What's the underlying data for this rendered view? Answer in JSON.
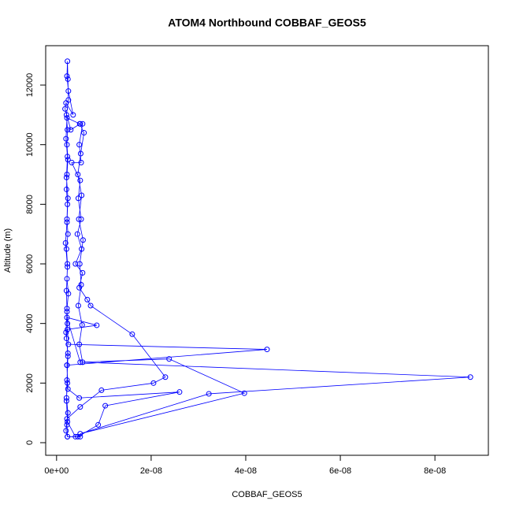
{
  "chart_data": {
    "type": "line",
    "title": "ATOM4 Northbound COBBAF_GEOS5",
    "x_label": "COBBAF_GEOS5",
    "y_label": "Altitude (m)",
    "xlim": [
      -2.3e-09,
      9.13e-08
    ],
    "ylim": [
      -423,
      13322
    ],
    "xticks": [
      {
        "value": 0,
        "label": "0e+00"
      },
      {
        "value": 2e-08,
        "label": "2e-08"
      },
      {
        "value": 4e-08,
        "label": "4e-08"
      },
      {
        "value": 6e-08,
        "label": "6e-08"
      },
      {
        "value": 8e-08,
        "label": "8e-08"
      }
    ],
    "yticks": [
      0,
      2000,
      4000,
      6000,
      8000,
      10000,
      12000
    ],
    "series": [
      {
        "name": "COBBAF_GEOS5",
        "color": "#0000ff",
        "x": [
          2.3e-09,
          2.2e-09,
          2.4e-09,
          2.1e-09,
          2.3e-09,
          2.2e-09,
          2.4e-09,
          2.1e-09,
          2.3e-09,
          2.2e-09,
          2.5e-09,
          2.2e-09,
          2.3e-09,
          2.1e-09,
          2.4e-09,
          2.2e-09,
          2.3e-09,
          2.1e-09,
          2.2e-09,
          2.4e-09,
          2.2e-09,
          2.3e-09,
          2.1e-09,
          2.5e-09,
          2.4e-09,
          2.3e-09,
          2.2e-09,
          2.5e-09,
          3.5e-09,
          2e-09,
          1.8e-09,
          3e-09,
          5e-09,
          5.5e-09,
          4.8e-09,
          5.2e-09,
          3.2e-09,
          5e-09,
          4.6e-09,
          5.2e-09,
          4.4e-09,
          5.3e-09,
          4e-09,
          5.5e-09,
          4.8e-09,
          6.5e-09,
          7.2e-09,
          1.6e-08,
          2.3e-08,
          2.05e-08,
          9.5e-09,
          5e-09,
          2.2e-09,
          2e-09,
          2.3e-09,
          4.5e-09,
          8.8e-09,
          1.03e-08,
          2.6e-08,
          4.8e-09,
          2.4e-09,
          2.2e-09,
          4.45e-08,
          2.5e-09,
          2.3e-09,
          8.5e-09,
          2.2e-09,
          5e-09,
          2.38e-08,
          3.97e-08,
          5e-09,
          3.22e-08,
          8.75e-08,
          5.5e-09,
          4.8e-09,
          5.4e-09,
          4.6e-09,
          5.2e-09,
          4.9e-09,
          5.6e-09,
          4.7e-09,
          5.3e-09,
          4.5e-09,
          5.1e-09,
          5.8e-09,
          4.9e-09,
          2.2e-09,
          2e-09,
          2.3e-09,
          2.1e-09,
          2.4e-09,
          2.2e-09,
          1.9e-09,
          2.3e-09,
          2.1e-09,
          2.2e-09,
          2e-09,
          2.4e-09,
          2.2e-09,
          2.1e-09,
          2.3e-09,
          4e-09,
          5e-09
        ],
        "values": [
          200,
          600,
          1000,
          1500,
          2000,
          2600,
          3000,
          3500,
          4000,
          4500,
          5000,
          5500,
          6000,
          6500,
          7000,
          7500,
          8000,
          8500,
          9000,
          9500,
          10000,
          10500,
          11000,
          11500,
          12200,
          12800,
          12300,
          11800,
          11000,
          11400,
          11200,
          10500,
          10700,
          10700,
          10000,
          9400,
          9400,
          8800,
          8200,
          7500,
          7000,
          6500,
          6000,
          5700,
          5200,
          4800,
          4600,
          3640,
          2200,
          2000,
          1760,
          1200,
          800,
          400,
          200,
          200,
          600,
          1240,
          1700,
          1500,
          1800,
          2600,
          3130,
          3300,
          3800,
          3940,
          4200,
          2700,
          2810,
          1660,
          300,
          1640,
          2200,
          2700,
          3300,
          3950,
          4600,
          5300,
          6000,
          6800,
          7500,
          8300,
          9000,
          9700,
          10400,
          10700,
          10900,
          10200,
          9600,
          8900,
          8200,
          7400,
          6700,
          5900,
          5100,
          4400,
          3700,
          2900,
          2100,
          1400,
          700,
          200,
          200
        ]
      }
    ]
  }
}
